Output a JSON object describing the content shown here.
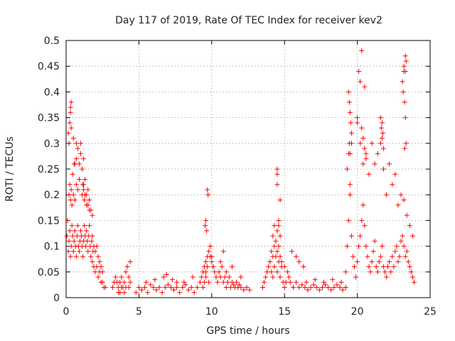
{
  "chart_data": {
    "type": "scatter",
    "title": "Day 117 of 2019, Rate Of TEC Index for receiver kev2",
    "xlabel": "GPS time / hours",
    "ylabel": "ROTI / TECUs",
    "xlim": [
      0,
      25
    ],
    "ylim": [
      0,
      0.5
    ],
    "xticks": [
      "0",
      "5",
      "10",
      "15",
      "20",
      "25"
    ],
    "yticks": [
      "0",
      "0.05",
      "0.1",
      "0.15",
      "0.2",
      "0.25",
      "0.3",
      "0.35",
      "0.4",
      "0.45",
      "0.5"
    ],
    "grid": true,
    "legend": "none",
    "marker": "plus",
    "color": "#ff0000",
    "series": [
      {
        "x": [
          0.05,
          0.1,
          0.15,
          0.2,
          0.25,
          0.3,
          0.35,
          0.4,
          0.45,
          0.5,
          0.55,
          0.6,
          0.65,
          0.7,
          0.75,
          0.8,
          0.85,
          0.9,
          0.95,
          1.0,
          1.05,
          1.1,
          1.15,
          1.2,
          1.25,
          1.3,
          1.35,
          1.4,
          1.45,
          1.5,
          1.55,
          1.6,
          1.65,
          1.7,
          1.75,
          1.8,
          1.85,
          1.9,
          2.0,
          2.1,
          2.2,
          2.3,
          2.4,
          2.5,
          2.6,
          2.7,
          0.2,
          0.25,
          0.3,
          0.35,
          0.4,
          0.45,
          0.5,
          0.6,
          0.7,
          0.8,
          0.9,
          1.0,
          1.1,
          1.2,
          1.3,
          1.4,
          1.5,
          1.6,
          1.7,
          1.8,
          0.3,
          0.3,
          0.35,
          0.35,
          0.25,
          0.5,
          0.55,
          0.8,
          0.9,
          1.0,
          1.2,
          0.7,
          1.1,
          1.15,
          1.2,
          1.25,
          1.3,
          1.4,
          1.5,
          1.6,
          0.15,
          0.2,
          0.6,
          0.7,
          1.8,
          1.9,
          2.0,
          2.1,
          2.2,
          2.3,
          2.4,
          2.5,
          3.2,
          3.3,
          3.4,
          3.5,
          3.6,
          3.7,
          3.8,
          3.9,
          4.0,
          4.1,
          4.2,
          4.3,
          4.4,
          3.6,
          3.8,
          4.0,
          4.2,
          4.4,
          3.7,
          4.1,
          4.3,
          4.8,
          5.0,
          5.2,
          5.4,
          5.6,
          5.8,
          6.0,
          6.2,
          6.4,
          6.6,
          6.8,
          7.0,
          7.2,
          7.4,
          7.6,
          7.8,
          8.0,
          8.2,
          8.4,
          8.6,
          8.8,
          9.0,
          5.5,
          6.1,
          6.7,
          7.3,
          8.1,
          8.7,
          6.9,
          7.6,
          9.2,
          9.3,
          9.4,
          9.5,
          9.6,
          9.7,
          9.8,
          9.9,
          10.0,
          10.1,
          10.2,
          10.3,
          10.4,
          10.5,
          10.6,
          10.7,
          10.8,
          10.9,
          11.0,
          11.1,
          11.2,
          11.3,
          11.4,
          11.5,
          11.6,
          11.7,
          11.8,
          11.9,
          12.0,
          12.2,
          12.4,
          12.6,
          9.4,
          9.5,
          9.6,
          9.6,
          9.7,
          9.8,
          9.9,
          10.0,
          10.1,
          10.6,
          10.8,
          11.0,
          11.4,
          12.0,
          9.55,
          9.6,
          9.65,
          9.7,
          9.75,
          13.5,
          13.6,
          13.7,
          13.8,
          13.9,
          14.0,
          14.1,
          14.2,
          14.3,
          14.4,
          14.5,
          14.6,
          14.7,
          14.8,
          14.9,
          15.0,
          15.1,
          15.2,
          15.3,
          15.4,
          15.6,
          15.8,
          16.0,
          16.2,
          14.1,
          14.2,
          14.3,
          14.4,
          14.5,
          14.6,
          14.7,
          14.8,
          15.0,
          14.2,
          14.3,
          14.5,
          14.5,
          14.5,
          14.5,
          14.6,
          14.6,
          14.7,
          14.7,
          15.5,
          15.8,
          16.0,
          16.3,
          16.4,
          16.6,
          16.8,
          17.0,
          17.2,
          17.4,
          17.6,
          17.8,
          18.0,
          18.2,
          18.4,
          18.6,
          18.8,
          19.0,
          19.2,
          16.5,
          17.1,
          17.7,
          18.3,
          18.9,
          19.2,
          19.3,
          19.4,
          19.5,
          19.6,
          19.7,
          19.8,
          19.9,
          20.0,
          20.1,
          20.2,
          20.3,
          20.4,
          20.5,
          20.6,
          20.7,
          20.8,
          20.9,
          21.0,
          21.1,
          21.2,
          21.3,
          21.4,
          21.5,
          21.6,
          21.7,
          21.8,
          21.9,
          22.0,
          22.1,
          22.2,
          22.3,
          22.4,
          22.5,
          22.6,
          22.7,
          22.8,
          22.9,
          23.0,
          23.1,
          23.2,
          23.3,
          23.4,
          23.5,
          23.6,
          23.7,
          23.8,
          23.9,
          19.3,
          19.4,
          19.5,
          19.6,
          20.0,
          20.2,
          20.4,
          20.6,
          20.8,
          21.0,
          21.2,
          21.4,
          21.6,
          21.8,
          22.0,
          22.4,
          22.8,
          23.0,
          23.2,
          23.4,
          23.6,
          23.8,
          19.4,
          19.45,
          19.5,
          19.55,
          19.6,
          20.1,
          20.2,
          20.3,
          20.4,
          20.5,
          20.6,
          21.6,
          21.65,
          21.7,
          21.8,
          22.2,
          22.6,
          23.1,
          23.15,
          23.2,
          23.25,
          23.3,
          23.35,
          19.45,
          19.5,
          20.0,
          20.3,
          20.5,
          21.7,
          21.75,
          23.2,
          23.3,
          23.35,
          23.3,
          23.25
        ],
        "y": [
          0.12,
          0.15,
          0.09,
          0.11,
          0.13,
          0.08,
          0.1,
          0.14,
          0.12,
          0.09,
          0.11,
          0.13,
          0.1,
          0.08,
          0.12,
          0.14,
          0.1,
          0.09,
          0.11,
          0.13,
          0.12,
          0.1,
          0.08,
          0.11,
          0.14,
          0.12,
          0.1,
          0.13,
          0.11,
          0.09,
          0.12,
          0.14,
          0.1,
          0.08,
          0.11,
          0.07,
          0.09,
          0.06,
          0.05,
          0.06,
          0.04,
          0.05,
          0.03,
          0.03,
          0.02,
          0.02,
          0.2,
          0.22,
          0.19,
          0.21,
          0.18,
          0.24,
          0.2,
          0.19,
          0.22,
          0.21,
          0.23,
          0.28,
          0.25,
          0.22,
          0.2,
          0.18,
          0.21,
          0.19,
          0.17,
          0.16,
          0.37,
          0.36,
          0.38,
          0.33,
          0.34,
          0.31,
          0.26,
          0.29,
          0.26,
          0.3,
          0.27,
          0.3,
          0.2,
          0.22,
          0.21,
          0.19,
          0.23,
          0.2,
          0.18,
          0.17,
          0.32,
          0.3,
          0.26,
          0.27,
          0.12,
          0.1,
          0.09,
          0.1,
          0.08,
          0.07,
          0.06,
          0.05,
          0.02,
          0.03,
          0.04,
          0.03,
          0.02,
          0.03,
          0.04,
          0.02,
          0.03,
          0.05,
          0.06,
          0.04,
          0.03,
          0.01,
          0.02,
          0.01,
          0.06,
          0.07,
          0.01,
          0.02,
          0.02,
          0.01,
          0.02,
          0.015,
          0.02,
          0.01,
          0.025,
          0.02,
          0.015,
          0.02,
          0.01,
          0.02,
          0.025,
          0.02,
          0.015,
          0.02,
          0.01,
          0.02,
          0.025,
          0.015,
          0.02,
          0.01,
          0.02,
          0.03,
          0.035,
          0.04,
          0.035,
          0.03,
          0.04,
          0.045,
          0.03,
          0.03,
          0.04,
          0.05,
          0.06,
          0.07,
          0.08,
          0.09,
          0.1,
          0.08,
          0.06,
          0.05,
          0.04,
          0.03,
          0.05,
          0.04,
          0.06,
          0.03,
          0.04,
          0.02,
          0.03,
          0.04,
          0.02,
          0.03,
          0.025,
          0.02,
          0.03,
          0.02,
          0.025,
          0.02,
          0.015,
          0.02,
          0.015,
          0.02,
          0.03,
          0.05,
          0.04,
          0.06,
          0.03,
          0.08,
          0.07,
          0.06,
          0.07,
          0.09,
          0.05,
          0.06,
          0.04,
          0.14,
          0.15,
          0.13,
          0.21,
          0.2,
          0.02,
          0.03,
          0.04,
          0.05,
          0.06,
          0.07,
          0.05,
          0.04,
          0.06,
          0.08,
          0.05,
          0.07,
          0.04,
          0.06,
          0.03,
          0.02,
          0.03,
          0.05,
          0.04,
          0.03,
          0.02,
          0.03,
          0.02,
          0.025,
          0.09,
          0.08,
          0.1,
          0.11,
          0.09,
          0.1,
          0.08,
          0.07,
          0.06,
          0.12,
          0.14,
          0.13,
          0.24,
          0.25,
          0.22,
          0.15,
          0.14,
          0.19,
          0.12,
          0.09,
          0.08,
          0.07,
          0.06,
          0.02,
          0.015,
          0.02,
          0.025,
          0.02,
          0.015,
          0.02,
          0.025,
          0.02,
          0.015,
          0.02,
          0.025,
          0.02,
          0.015,
          0.02,
          0.03,
          0.035,
          0.03,
          0.035,
          0.03,
          0.05,
          0.1,
          0.15,
          0.2,
          0.12,
          0.08,
          0.06,
          0.04,
          0.07,
          0.1,
          0.12,
          0.15,
          0.18,
          0.14,
          0.1,
          0.08,
          0.06,
          0.05,
          0.07,
          0.09,
          0.11,
          0.06,
          0.05,
          0.07,
          0.08,
          0.1,
          0.06,
          0.05,
          0.04,
          0.06,
          0.07,
          0.05,
          0.08,
          0.06,
          0.09,
          0.1,
          0.07,
          0.08,
          0.11,
          0.12,
          0.1,
          0.08,
          0.09,
          0.07,
          0.06,
          0.05,
          0.04,
          0.03,
          0.25,
          0.28,
          0.22,
          0.3,
          0.35,
          0.3,
          0.26,
          0.28,
          0.24,
          0.3,
          0.26,
          0.28,
          0.3,
          0.25,
          0.2,
          0.22,
          0.18,
          0.2,
          0.19,
          0.16,
          0.14,
          0.12,
          0.4,
          0.38,
          0.36,
          0.34,
          0.32,
          0.44,
          0.42,
          0.33,
          0.31,
          0.29,
          0.27,
          0.35,
          0.33,
          0.31,
          0.29,
          0.26,
          0.24,
          0.42,
          0.4,
          0.44,
          0.38,
          0.35,
          0.3,
          0.3,
          0.28,
          0.34,
          0.48,
          0.41,
          0.34,
          0.32,
          0.45,
          0.47,
          0.46,
          0.44,
          0.29
        ]
      }
    ]
  }
}
